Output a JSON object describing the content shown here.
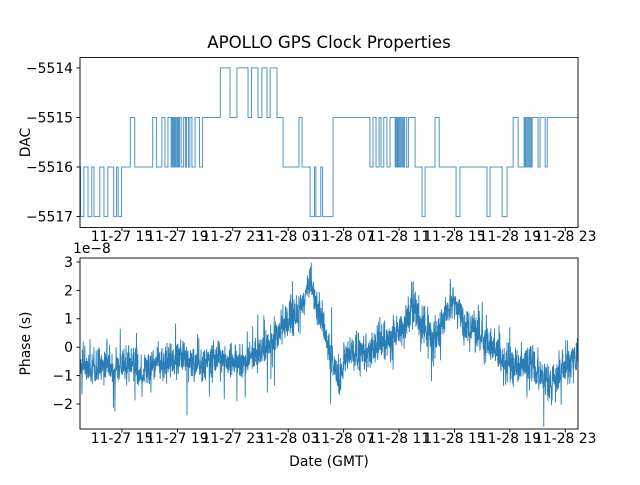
{
  "figure": {
    "title": "APOLLO GPS Clock Properties",
    "background": "#ffffff",
    "line_color": "#1f77b4",
    "spine_color": "#000000"
  },
  "chart_data": [
    {
      "type": "line",
      "subtype": "step",
      "ylabel": "DAC",
      "xlabel": "",
      "x_tick_labels": [
        "11-27 15",
        "11-27 19",
        "11-27 23",
        "11-28 03",
        "11-28 07",
        "11-28 11",
        "11-28 15",
        "11-28 19",
        "11-28 23"
      ],
      "x_tick_hours": [
        15,
        19,
        23,
        27,
        31,
        35,
        39,
        43,
        47
      ],
      "xlim_hours": [
        11.97,
        47.92
      ],
      "ylim": [
        -5517.22,
        -5513.79
      ],
      "y_ticks": [
        -5514,
        -5515,
        -5516,
        -5517
      ],
      "y_tick_labels": [
        "−5514",
        "−5515",
        "−5516",
        "−5517"
      ],
      "grid": false,
      "legend": null,
      "steps": [
        [
          11.97,
          -5516
        ],
        [
          12.02,
          -5517
        ],
        [
          12.25,
          -5516
        ],
        [
          12.55,
          -5517
        ],
        [
          12.82,
          -5516
        ],
        [
          12.98,
          -5517
        ],
        [
          13.4,
          -5516
        ],
        [
          13.7,
          -5517
        ],
        [
          13.98,
          -5516
        ],
        [
          14.4,
          -5517
        ],
        [
          14.6,
          -5516
        ],
        [
          14.72,
          -5517
        ],
        [
          14.97,
          -5516
        ],
        [
          15.6,
          -5515
        ],
        [
          15.92,
          -5516
        ],
        [
          17.22,
          -5515
        ],
        [
          17.5,
          -5516
        ],
        [
          17.88,
          -5515
        ],
        [
          18.1,
          -5516
        ],
        [
          18.32,
          -5515
        ],
        [
          18.55,
          -5516
        ],
        [
          18.62,
          -5515
        ],
        [
          18.69,
          -5516
        ],
        [
          18.75,
          -5515
        ],
        [
          18.82,
          -5516
        ],
        [
          18.88,
          -5515
        ],
        [
          18.96,
          -5516
        ],
        [
          19.03,
          -5515
        ],
        [
          19.1,
          -5516
        ],
        [
          19.16,
          -5515
        ],
        [
          19.28,
          -5516
        ],
        [
          19.45,
          -5515
        ],
        [
          19.58,
          -5516
        ],
        [
          19.66,
          -5515
        ],
        [
          19.8,
          -5516
        ],
        [
          19.9,
          -5515
        ],
        [
          20.05,
          -5516
        ],
        [
          20.28,
          -5515
        ],
        [
          20.6,
          -5516
        ],
        [
          20.82,
          -5515
        ],
        [
          22.1,
          -5514
        ],
        [
          22.8,
          -5515
        ],
        [
          23.3,
          -5514
        ],
        [
          24.1,
          -5515
        ],
        [
          24.35,
          -5514
        ],
        [
          24.82,
          -5515
        ],
        [
          25.1,
          -5514
        ],
        [
          25.47,
          -5515
        ],
        [
          25.7,
          -5514
        ],
        [
          26.19,
          -5515
        ],
        [
          26.63,
          -5516
        ],
        [
          27.78,
          -5515
        ],
        [
          28.0,
          -5516
        ],
        [
          28.58,
          -5517
        ],
        [
          28.9,
          -5516
        ],
        [
          29.0,
          -5517
        ],
        [
          29.35,
          -5516
        ],
        [
          29.48,
          -5517
        ],
        [
          30.24,
          -5515
        ],
        [
          32.9,
          -5516
        ],
        [
          33.12,
          -5515
        ],
        [
          33.34,
          -5516
        ],
        [
          33.56,
          -5515
        ],
        [
          33.7,
          -5516
        ],
        [
          33.9,
          -5515
        ],
        [
          34.13,
          -5516
        ],
        [
          34.35,
          -5515
        ],
        [
          34.72,
          -5516
        ],
        [
          34.79,
          -5515
        ],
        [
          34.86,
          -5516
        ],
        [
          34.93,
          -5515
        ],
        [
          35.0,
          -5516
        ],
        [
          35.08,
          -5515
        ],
        [
          35.16,
          -5516
        ],
        [
          35.24,
          -5515
        ],
        [
          35.32,
          -5516
        ],
        [
          35.4,
          -5515
        ],
        [
          35.55,
          -5516
        ],
        [
          35.68,
          -5515
        ],
        [
          36.16,
          -5516
        ],
        [
          36.66,
          -5517
        ],
        [
          36.88,
          -5516
        ],
        [
          37.6,
          -5515
        ],
        [
          37.9,
          -5516
        ],
        [
          39.12,
          -5517
        ],
        [
          39.4,
          -5516
        ],
        [
          41.35,
          -5517
        ],
        [
          41.57,
          -5516
        ],
        [
          42.44,
          -5517
        ],
        [
          42.8,
          -5516
        ],
        [
          43.24,
          -5515
        ],
        [
          43.6,
          -5516
        ],
        [
          44.03,
          -5515
        ],
        [
          44.1,
          -5516
        ],
        [
          44.17,
          -5515
        ],
        [
          44.25,
          -5516
        ],
        [
          44.33,
          -5515
        ],
        [
          44.41,
          -5516
        ],
        [
          44.5,
          -5515
        ],
        [
          44.57,
          -5516
        ],
        [
          44.61,
          -5515
        ],
        [
          45.04,
          -5516
        ],
        [
          45.18,
          -5515
        ],
        [
          45.55,
          -5516
        ],
        [
          45.7,
          -5515
        ]
      ]
    },
    {
      "type": "line",
      "subtype": "noisy",
      "ylabel": "Phase (s)",
      "xlabel": "Date (GMT)",
      "offset_label": "1e−8",
      "x_tick_labels": [
        "11-27 15",
        "11-27 19",
        "11-27 23",
        "11-28 03",
        "11-28 07",
        "11-28 11",
        "11-28 15",
        "11-28 19",
        "11-28 23"
      ],
      "x_tick_hours": [
        15,
        19,
        23,
        27,
        31,
        35,
        39,
        43,
        47
      ],
      "xlim_hours": [
        11.97,
        47.92
      ],
      "ylim_1e8": [
        -2.88,
        3.14
      ],
      "y_ticks_1e8": [
        3,
        2,
        1,
        0,
        -1,
        -2
      ],
      "y_tick_labels": [
        "3",
        "2",
        "1",
        "0",
        "−1",
        "−2"
      ],
      "grid": false,
      "legend": null,
      "trend_keypoints_1e8": [
        [
          12.0,
          -0.55
        ],
        [
          12.6,
          -0.7
        ],
        [
          13.2,
          -0.75
        ],
        [
          13.8,
          -0.55
        ],
        [
          14.3,
          -0.8
        ],
        [
          15.0,
          -0.6
        ],
        [
          15.7,
          -0.5
        ],
        [
          16.4,
          -1.0
        ],
        [
          17.0,
          -0.75
        ],
        [
          17.7,
          -0.5
        ],
        [
          18.4,
          -0.6
        ],
        [
          19.2,
          -0.45
        ],
        [
          20.0,
          -0.5
        ],
        [
          20.7,
          -0.65
        ],
        [
          21.4,
          -0.5
        ],
        [
          22.0,
          -0.35
        ],
        [
          22.7,
          -0.55
        ],
        [
          23.4,
          -0.6
        ],
        [
          24.0,
          -0.5
        ],
        [
          24.7,
          -0.35
        ],
        [
          25.3,
          -0.15
        ],
        [
          25.9,
          0.3
        ],
        [
          26.5,
          0.7
        ],
        [
          27.2,
          1.0
        ],
        [
          27.8,
          1.35
        ],
        [
          28.3,
          1.8
        ],
        [
          28.6,
          2.35
        ],
        [
          28.9,
          1.65
        ],
        [
          29.3,
          1.2
        ],
        [
          29.8,
          0.35
        ],
        [
          30.3,
          -0.65
        ],
        [
          30.7,
          -1.0
        ],
        [
          31.2,
          -0.35
        ],
        [
          31.8,
          -0.2
        ],
        [
          32.5,
          -0.3
        ],
        [
          33.2,
          0.0
        ],
        [
          33.9,
          0.15
        ],
        [
          34.5,
          0.3
        ],
        [
          35.1,
          0.5
        ],
        [
          35.7,
          1.0
        ],
        [
          36.1,
          1.5
        ],
        [
          36.5,
          1.05
        ],
        [
          36.9,
          0.6
        ],
        [
          37.4,
          0.45
        ],
        [
          38.0,
          0.7
        ],
        [
          38.6,
          1.45
        ],
        [
          39.0,
          1.6
        ],
        [
          39.5,
          1.0
        ],
        [
          40.0,
          0.55
        ],
        [
          40.6,
          0.6
        ],
        [
          41.2,
          0.3
        ],
        [
          41.8,
          0.0
        ],
        [
          42.4,
          -0.4
        ],
        [
          43.0,
          -0.65
        ],
        [
          43.6,
          -0.8
        ],
        [
          44.2,
          -0.6
        ],
        [
          44.8,
          -0.85
        ],
        [
          45.4,
          -0.95
        ],
        [
          46.0,
          -1.25
        ],
        [
          46.5,
          -0.9
        ],
        [
          47.0,
          -0.7
        ],
        [
          47.5,
          -0.5
        ],
        [
          47.92,
          -0.3
        ]
      ],
      "forced_spikes_1e8": [
        [
          16.45,
          -1.75
        ],
        [
          19.7,
          -2.4
        ],
        [
          23.3,
          -1.9
        ],
        [
          25.5,
          -1.6
        ],
        [
          26.0,
          -1.35
        ],
        [
          28.55,
          2.75
        ],
        [
          30.55,
          -1.35
        ],
        [
          35.9,
          2.3
        ],
        [
          38.7,
          2.4
        ],
        [
          41.0,
          1.6
        ],
        [
          46.0,
          -2.05
        ],
        [
          46.3,
          -1.95
        ]
      ],
      "noise_sd_1e8": 0.33,
      "n_points": 2400,
      "seed": 42
    }
  ]
}
